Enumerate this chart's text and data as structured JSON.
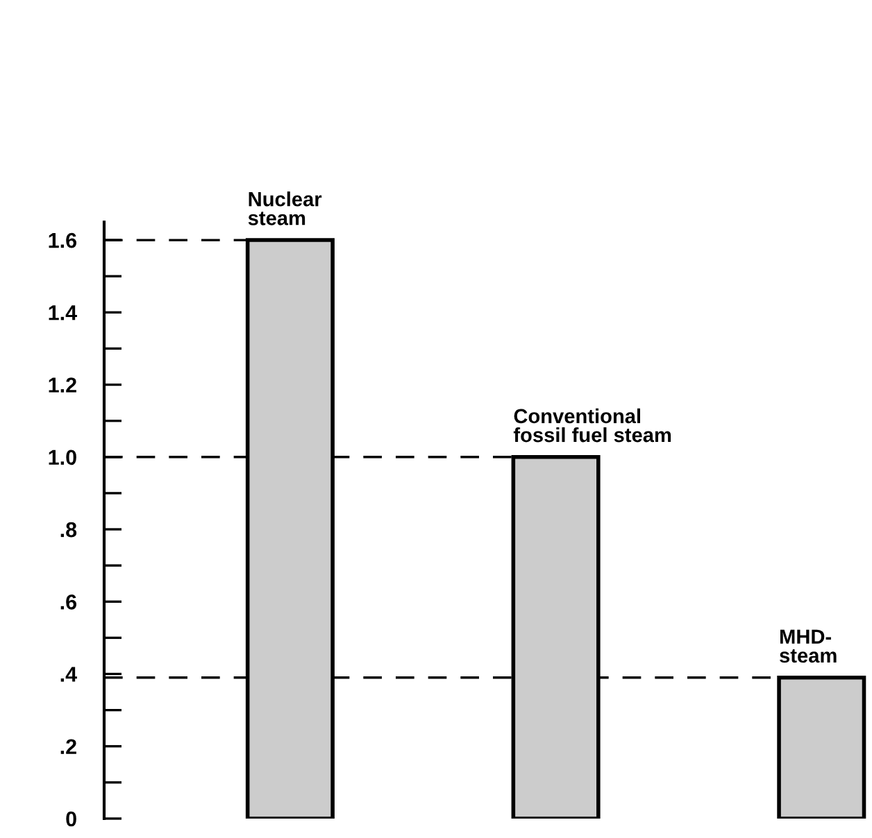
{
  "chart_data": {
    "type": "bar",
    "categories": [
      "Nuclear\nsteam",
      "Conventional\nfossil fuel steam",
      "MHD-\nsteam"
    ],
    "values": [
      1.6,
      1.0,
      0.39
    ],
    "color": "#cccccc",
    "ylim": [
      0,
      1.65
    ],
    "yticks": [
      0,
      {
        "value": 0.1,
        "label": null
      },
      {
        "value": 0.2,
        "label": ".2"
      },
      {
        "value": 0.3,
        "label": null
      },
      {
        "value": 0.4,
        "label": ".4"
      },
      {
        "value": 0.5,
        "label": null
      },
      {
        "value": 0.6,
        "label": ".6"
      },
      {
        "value": 0.7,
        "label": null
      },
      {
        "value": 0.8,
        "label": ".8"
      },
      {
        "value": 0.9,
        "label": null
      },
      {
        "value": 1.0,
        "label": "1.0"
      },
      {
        "value": 1.1,
        "label": null
      },
      {
        "value": 1.2,
        "label": "1.2"
      },
      {
        "value": 1.3,
        "label": null
      },
      {
        "value": 1.4,
        "label": "1.4"
      },
      {
        "value": 1.5,
        "label": null
      },
      {
        "value": 1.6,
        "label": "1.6"
      }
    ],
    "ref_lines": [
      {
        "axis": "y",
        "value": 1.6,
        "line_style": "dashed",
        "color": "#000000"
      },
      {
        "axis": "y",
        "value": 1.0,
        "line_style": "dashed",
        "color": "#000000"
      },
      {
        "axis": "y",
        "value": 0.39,
        "line_style": "dashed",
        "color": "#000000"
      }
    ],
    "grid": false,
    "legend": false,
    "tick_labels": "y"
  }
}
